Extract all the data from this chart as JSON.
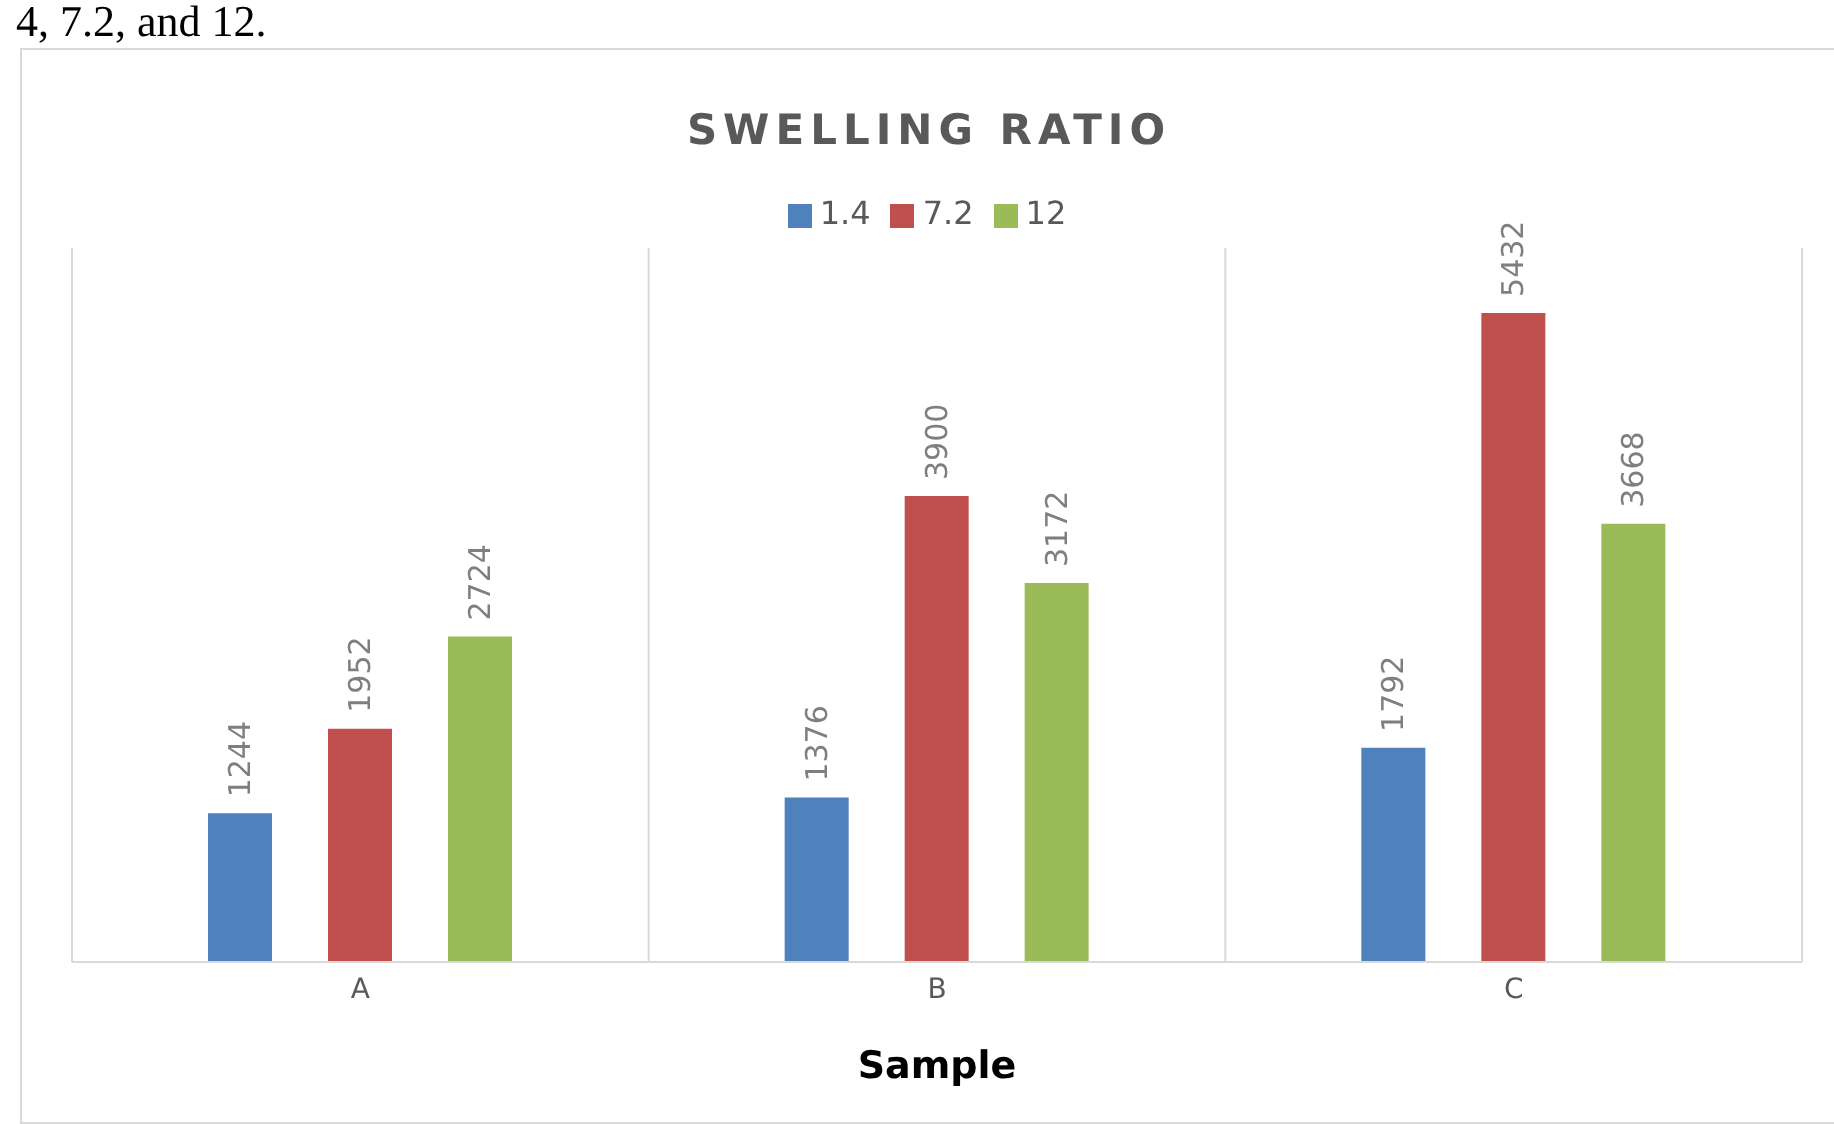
{
  "chart_data": {
    "type": "bar",
    "title": "SWELLING RATIO",
    "xlabel": "Sample",
    "annotations": [
      "4, 7.2, and 12."
    ],
    "categories": [
      "A",
      "B",
      "C"
    ],
    "series": [
      {
        "name": "1.4",
        "color": "#4f81bd",
        "values": [
          1244,
          1376,
          1792
        ]
      },
      {
        "name": "7.2",
        "color": "#c0504d",
        "values": [
          1952,
          3900,
          5432
        ]
      },
      {
        "name": "12",
        "color": "#9bbb59",
        "values": [
          2724,
          3172,
          3668
        ]
      }
    ],
    "data_labels": true,
    "grid": "x",
    "legend": "top"
  }
}
